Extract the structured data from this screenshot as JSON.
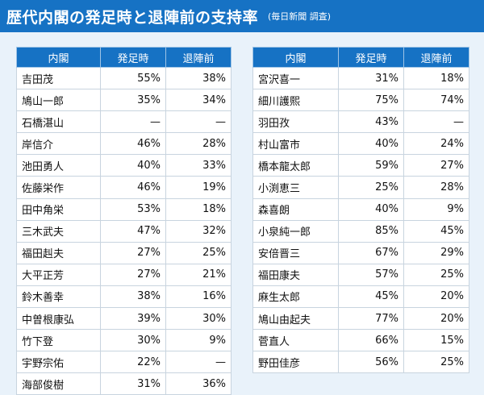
{
  "header": {
    "title": "歴代内閣の発足時と退陣前の支持率",
    "source": "(毎日新聞 調査)"
  },
  "columns": {
    "cabinet": "内閣",
    "start": "発足時",
    "end": "退陣前"
  },
  "left_rows": [
    {
      "name": "吉田茂",
      "start": "55%",
      "end": "38%"
    },
    {
      "name": "鳩山一郎",
      "start": "35%",
      "end": "34%"
    },
    {
      "name": "石橋湛山",
      "start": "—",
      "end": "—"
    },
    {
      "name": "岸信介",
      "start": "46%",
      "end": "28%"
    },
    {
      "name": "池田勇人",
      "start": "40%",
      "end": "33%"
    },
    {
      "name": "佐藤栄作",
      "start": "46%",
      "end": "19%"
    },
    {
      "name": "田中角栄",
      "start": "53%",
      "end": "18%"
    },
    {
      "name": "三木武夫",
      "start": "47%",
      "end": "32%"
    },
    {
      "name": "福田赳夫",
      "start": "27%",
      "end": "25%"
    },
    {
      "name": "大平正芳",
      "start": "27%",
      "end": "21%"
    },
    {
      "name": "鈴木善幸",
      "start": "38%",
      "end": "16%"
    },
    {
      "name": "中曽根康弘",
      "start": "39%",
      "end": "30%"
    },
    {
      "name": "竹下登",
      "start": "30%",
      "end": "9%"
    },
    {
      "name": "宇野宗佑",
      "start": "22%",
      "end": "—"
    },
    {
      "name": "海部俊樹",
      "start": "31%",
      "end": "36%"
    }
  ],
  "right_rows": [
    {
      "name": "宮沢喜一",
      "start": "31%",
      "end": "18%"
    },
    {
      "name": "細川護熙",
      "start": "75%",
      "end": "74%"
    },
    {
      "name": "羽田孜",
      "start": "43%",
      "end": "—"
    },
    {
      "name": "村山富市",
      "start": "40%",
      "end": "24%"
    },
    {
      "name": "橋本龍太郎",
      "start": "59%",
      "end": "27%"
    },
    {
      "name": "小渕恵三",
      "start": "25%",
      "end": "28%"
    },
    {
      "name": "森喜朗",
      "start": "40%",
      "end": "9%"
    },
    {
      "name": "小泉純一郎",
      "start": "85%",
      "end": "45%"
    },
    {
      "name": "安倍晋三",
      "start": "67%",
      "end": "29%"
    },
    {
      "name": "福田康夫",
      "start": "57%",
      "end": "25%"
    },
    {
      "name": "麻生太郎",
      "start": "45%",
      "end": "20%"
    },
    {
      "name": "鳩山由起夫",
      "start": "77%",
      "end": "20%"
    },
    {
      "name": "菅直人",
      "start": "66%",
      "end": "15%"
    },
    {
      "name": "野田佳彦",
      "start": "56%",
      "end": "25%"
    }
  ]
}
